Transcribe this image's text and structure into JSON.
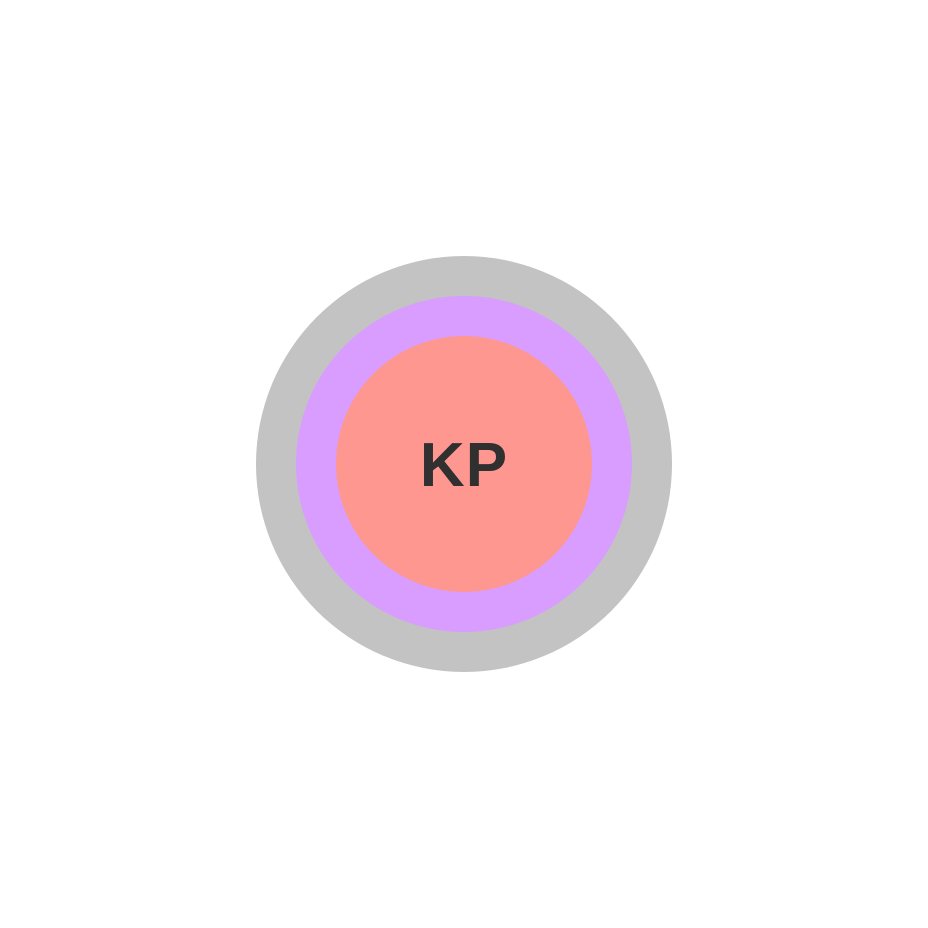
{
  "avatar": {
    "initials": "KP",
    "colors": {
      "outer_ring": "#c3c3c3",
      "middle_ring": "#d89dff",
      "fill": "#ff9791",
      "text": "#303030",
      "background": "#ffffff"
    }
  }
}
